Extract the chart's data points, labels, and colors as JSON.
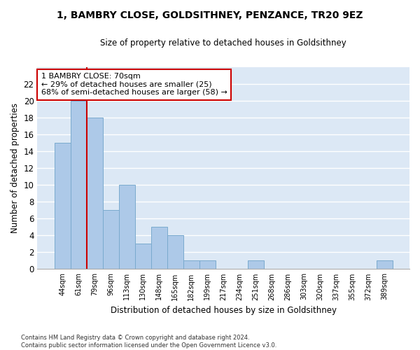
{
  "title": "1, BAMBRY CLOSE, GOLDSITHNEY, PENZANCE, TR20 9EZ",
  "subtitle": "Size of property relative to detached houses in Goldsithney",
  "xlabel": "Distribution of detached houses by size in Goldsithney",
  "ylabel": "Number of detached properties",
  "bar_color": "#adc9e8",
  "bar_edge_color": "#7aaace",
  "background_color": "#dce8f5",
  "grid_color": "#ffffff",
  "categories": [
    "44sqm",
    "61sqm",
    "79sqm",
    "96sqm",
    "113sqm",
    "130sqm",
    "148sqm",
    "165sqm",
    "182sqm",
    "199sqm",
    "217sqm",
    "234sqm",
    "251sqm",
    "268sqm",
    "286sqm",
    "303sqm",
    "320sqm",
    "337sqm",
    "355sqm",
    "372sqm",
    "389sqm"
  ],
  "values": [
    15,
    20,
    18,
    7,
    10,
    3,
    5,
    4,
    1,
    1,
    0,
    0,
    1,
    0,
    0,
    0,
    0,
    0,
    0,
    0,
    1
  ],
  "red_line_x": 1.5,
  "annotation_text": "1 BAMBRY CLOSE: 70sqm\n← 29% of detached houses are smaller (25)\n68% of semi-detached houses are larger (58) →",
  "annotation_box_color": "#ffffff",
  "annotation_box_edge_color": "#cc0000",
  "ylim": [
    0,
    24
  ],
  "yticks": [
    0,
    2,
    4,
    6,
    8,
    10,
    12,
    14,
    16,
    18,
    20,
    22
  ],
  "footer_line1": "Contains HM Land Registry data © Crown copyright and database right 2024.",
  "footer_line2": "Contains public sector information licensed under the Open Government Licence v3.0."
}
